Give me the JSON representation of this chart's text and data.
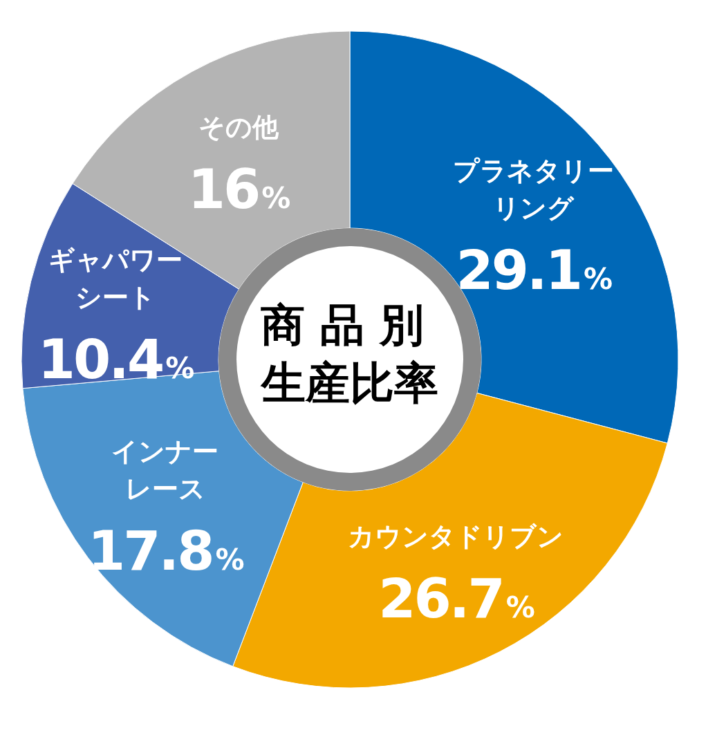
{
  "chart_data": {
    "type": "donut",
    "title": "商品別生産比率",
    "categories": [
      "プラネタリーリング",
      "カウンタドリブン",
      "インナーレース",
      "ギャパワーシート",
      "その他"
    ],
    "values": [
      29.1,
      26.7,
      17.8,
      10.4,
      16
    ],
    "value_labels": [
      "29.1%",
      "26.7%",
      "17.8%",
      "10.4%",
      "16%"
    ],
    "colors": [
      "#0068b7",
      "#f3a800",
      "#4c94ce",
      "#4460ad",
      "#b4b4b4"
    ]
  }
}
